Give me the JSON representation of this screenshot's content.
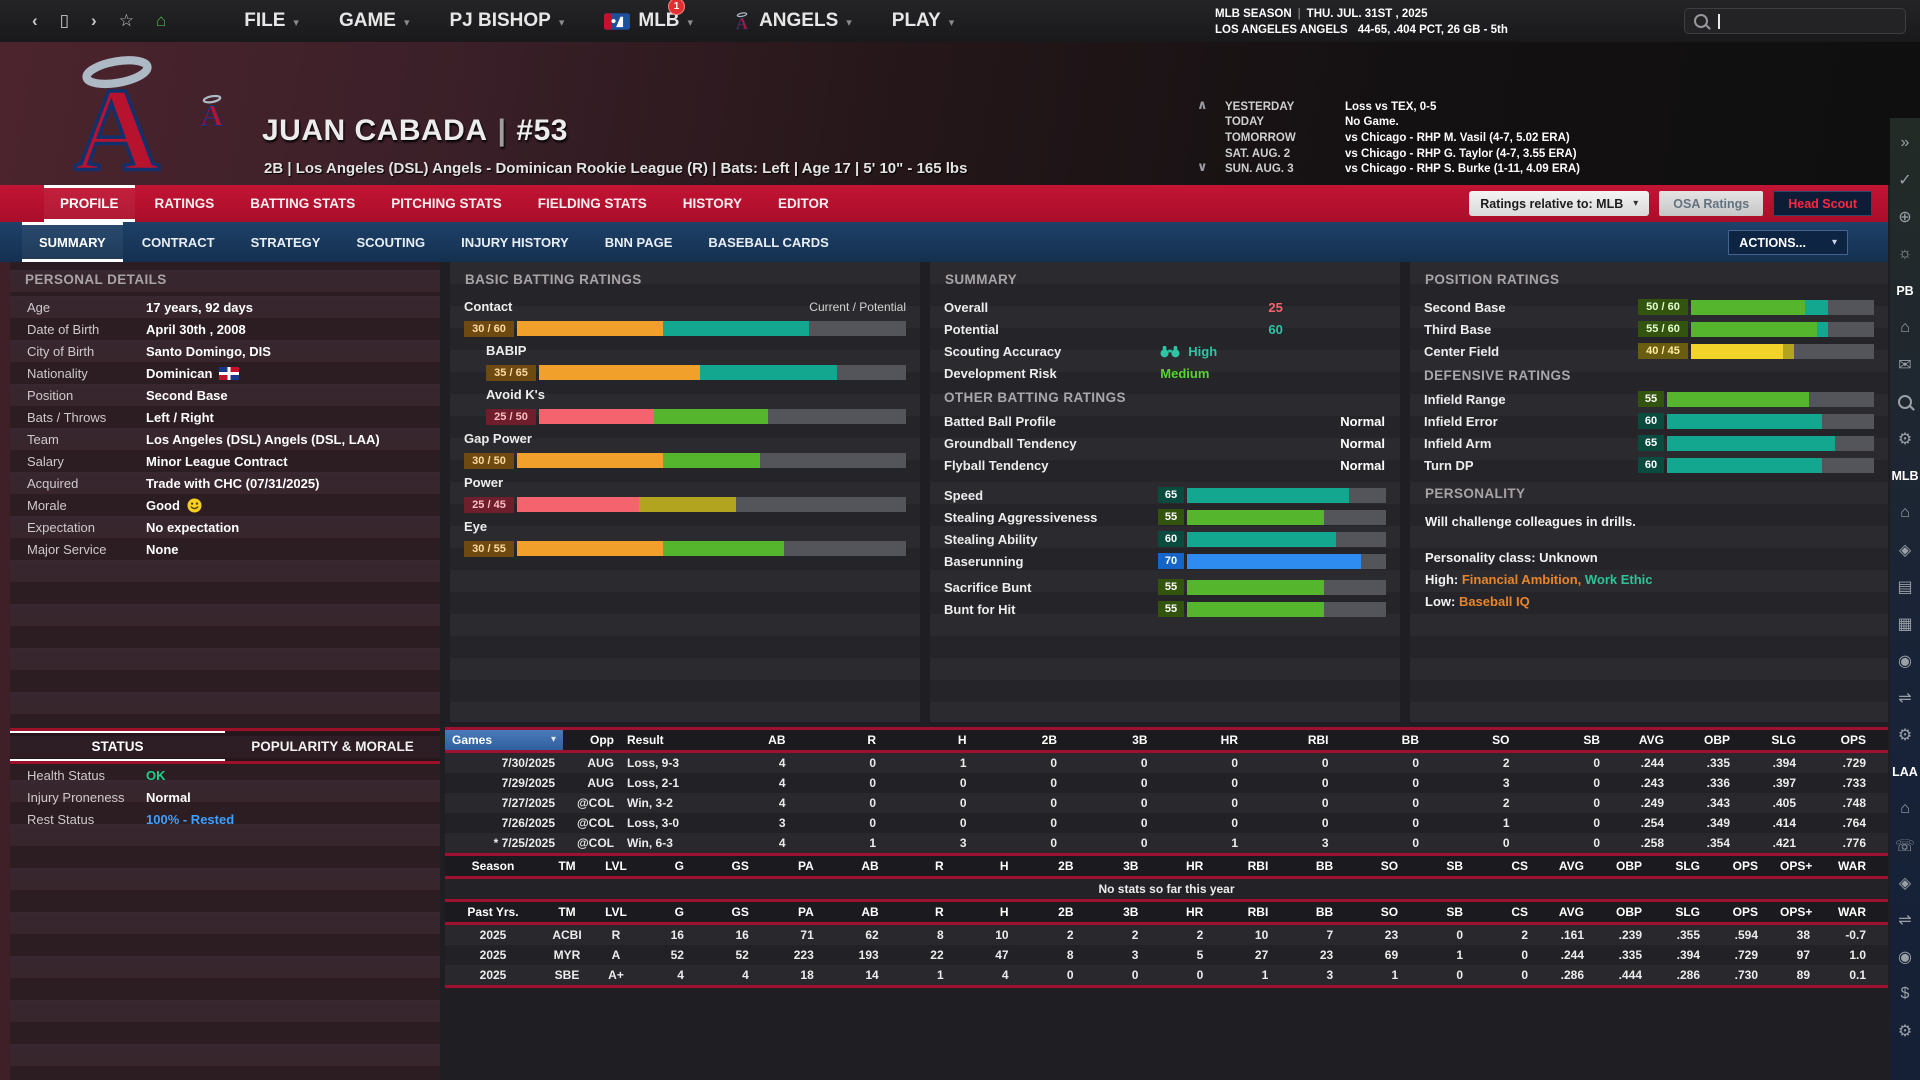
{
  "topbar": {
    "nav": [
      {
        "name": "back-icon",
        "glyph": "‹"
      },
      {
        "name": "window-icon",
        "glyph": "▯"
      },
      {
        "name": "forward-icon",
        "glyph": "›"
      },
      {
        "name": "favorite-icon",
        "glyph": "☆"
      },
      {
        "name": "home-icon",
        "glyph": "⌂"
      }
    ],
    "menus": [
      {
        "label": "FILE"
      },
      {
        "label": "GAME"
      },
      {
        "label": "PJ BISHOP"
      },
      {
        "label": "MLB",
        "logo": "mlb",
        "badge": "1"
      },
      {
        "label": "ANGELS",
        "logo": "angels"
      },
      {
        "label": "PLAY"
      }
    ],
    "season_line1_label": "MLB SEASON",
    "season_sep": "|",
    "season_date": "THU. JUL. 31ST , 2025",
    "team_line_label": "LOS ANGELES ANGELS",
    "team_line_value": "44-65, .404 PCT, 26 GB - 5th",
    "search_placeholder": ""
  },
  "header": {
    "player_name": "JUAN CABADA",
    "pipe": "|",
    "player_number": "#53",
    "subtitle": "2B  |  Los Angeles (DSL) Angels - Dominican Rookie League (R)  |  Bats: Left  |  Age 17  |  5' 10\" - 165 lbs",
    "prev_next_glyphs": "∧ ∨",
    "schedule": [
      {
        "label": "YESTERDAY",
        "value": "Loss vs TEX, 0-5"
      },
      {
        "label": "TODAY",
        "value": "No Game."
      },
      {
        "label": "TOMORROW",
        "value": "vs Chicago - RHP M. Vasil (4-7, 5.02 ERA)"
      },
      {
        "label": "SAT. AUG. 2",
        "value": "vs Chicago - RHP G. Taylor (4-7, 3.55 ERA)"
      },
      {
        "label": "SUN. AUG. 3",
        "value": "vs Chicago - RHP S. Burke (1-11, 4.09 ERA)"
      }
    ]
  },
  "tabs_primary": [
    {
      "label": "PROFILE",
      "active": true
    },
    {
      "label": "RATINGS",
      "active": false
    },
    {
      "label": "BATTING STATS",
      "active": false
    },
    {
      "label": "PITCHING STATS",
      "active": false
    },
    {
      "label": "FIELDING STATS",
      "active": false
    },
    {
      "label": "HISTORY",
      "active": false
    },
    {
      "label": "EDITOR",
      "active": false
    }
  ],
  "rating_controls": {
    "relative_label": "Ratings relative to: MLB",
    "osa_label": "OSA Ratings",
    "scout_label": "Head Scout"
  },
  "tabs_secondary": [
    {
      "label": "SUMMARY",
      "active": true
    },
    {
      "label": "CONTRACT",
      "active": false
    },
    {
      "label": "STRATEGY",
      "active": false
    },
    {
      "label": "SCOUTING",
      "active": false
    },
    {
      "label": "INJURY HISTORY",
      "active": false
    },
    {
      "label": "BNN PAGE",
      "active": false
    },
    {
      "label": "BASEBALL CARDS",
      "active": false
    }
  ],
  "actions_label": "ACTIONS...",
  "personal": {
    "title": "PERSONAL DETAILS",
    "rows": [
      {
        "label": "Age",
        "value": "17 years, 92 days"
      },
      {
        "label": "Date of Birth",
        "value": "April 30th , 2008"
      },
      {
        "label": "City of Birth",
        "value": "Santo Domingo, DIS"
      },
      {
        "label": "Nationality",
        "value": "Dominican",
        "icon": "dr-flag"
      },
      {
        "label": "Position",
        "value": "Second Base"
      },
      {
        "label": "Bats / Throws",
        "value": "Left / Right"
      },
      {
        "label": "Team",
        "value": "Los Angeles (DSL) Angels (DSL, LAA)"
      },
      {
        "label": "Salary",
        "value": "Minor League Contract"
      },
      {
        "label": "Acquired",
        "value": "Trade with CHC (07/31/2025)"
      },
      {
        "label": "Morale",
        "value": "Good",
        "icon": "smiley"
      },
      {
        "label": "Expectation",
        "value": "No expectation"
      },
      {
        "label": "Major Service",
        "value": "None"
      }
    ]
  },
  "status": {
    "tabs": [
      {
        "label": "STATUS",
        "active": true
      },
      {
        "label": "POPULARITY & MORALE",
        "active": false
      }
    ],
    "rows": [
      {
        "label": "Health Status",
        "value": "OK",
        "color": "#1fd08a"
      },
      {
        "label": "Injury Proneness",
        "value": "Normal",
        "color": "#ffffff"
      },
      {
        "label": "Rest Status",
        "value": "100% - Rested",
        "color": "#3f9fff"
      }
    ]
  },
  "batting": {
    "title": "BASIC BATTING RATINGS",
    "axis_label": "Current / Potential",
    "ratings": [
      {
        "label": "Contact",
        "cur": 30,
        "pot": 60,
        "indent": false
      },
      {
        "label": "BABIP",
        "cur": 35,
        "pot": 65,
        "indent": true
      },
      {
        "label": "Avoid K's",
        "cur": 25,
        "pot": 50,
        "indent": true
      },
      {
        "label": "Gap Power",
        "cur": 30,
        "pot": 50,
        "indent": false
      },
      {
        "label": "Power",
        "cur": 25,
        "pot": 45,
        "indent": false
      },
      {
        "label": "Eye",
        "cur": 30,
        "pot": 55,
        "indent": false
      }
    ]
  },
  "summary": {
    "title": "SUMMARY",
    "rows": [
      {
        "label": "Overall",
        "value": "25",
        "color": "#f4636e",
        "pos": 72
      },
      {
        "label": "Potential",
        "value": "60",
        "color": "#2ec4a5",
        "pos": 72
      },
      {
        "label": "Scouting Accuracy",
        "value": "High",
        "color": "#2ec4a5",
        "pos": 49,
        "icon": "binoculars"
      },
      {
        "label": "Development Risk",
        "value": "Medium",
        "color": "#57d52e",
        "pos": 49
      }
    ],
    "other_title": "OTHER BATTING RATINGS",
    "other_rows": [
      {
        "label": "Batted Ball Profile",
        "value": "Normal"
      },
      {
        "label": "Groundball Tendency",
        "value": "Normal"
      },
      {
        "label": "Flyball Tendency",
        "value": "Normal"
      }
    ],
    "bars1": [
      {
        "label": "Speed",
        "value": 65
      },
      {
        "label": "Stealing Aggressiveness",
        "value": 55
      },
      {
        "label": "Stealing Ability",
        "value": 60
      },
      {
        "label": "Baserunning",
        "value": 70
      }
    ],
    "bars2": [
      {
        "label": "Sacrifice Bunt",
        "value": 55
      },
      {
        "label": "Bunt for Hit",
        "value": 55
      }
    ]
  },
  "position": {
    "title": "POSITION RATINGS",
    "pos_ratings": [
      {
        "label": "Second Base",
        "cur": 50,
        "pot": 60
      },
      {
        "label": "Third Base",
        "cur": 55,
        "pot": 60
      },
      {
        "label": "Center Field",
        "cur": 40,
        "pot": 45
      }
    ],
    "def_title": "DEFENSIVE RATINGS",
    "def_ratings": [
      {
        "label": "Infield Range",
        "value": 55
      },
      {
        "label": "Infield Error",
        "value": 60
      },
      {
        "label": "Infield Arm",
        "value": 65
      },
      {
        "label": "Turn DP",
        "value": 60
      }
    ],
    "personality": {
      "title": "PERSONALITY",
      "line1": "Will challenge colleagues in drills.",
      "class_line": "Personality class: Unknown",
      "high_label": "High:",
      "high_items": [
        {
          "text": "Financial Ambition,",
          "color": "orange"
        },
        {
          "text": "Work Ethic",
          "color": "teal"
        }
      ],
      "low_label": "Low:",
      "low_items": [
        {
          "text": "Baseball IQ",
          "color": "orange"
        }
      ]
    }
  },
  "gamelog": {
    "columns": [
      "Games",
      "Opp",
      "Result",
      "AB",
      "R",
      "H",
      "2B",
      "3B",
      "HR",
      "RBI",
      "BB",
      "SO",
      "SB",
      "AVG",
      "OBP",
      "SLG",
      "OPS"
    ],
    "rows": [
      [
        "7/30/2025",
        "AUG",
        "Loss, 9-3",
        "4",
        "0",
        "1",
        "0",
        "0",
        "0",
        "0",
        "0",
        "2",
        "0",
        ".244",
        ".335",
        ".394",
        ".729"
      ],
      [
        "7/29/2025",
        "AUG",
        "Loss, 2-1",
        "4",
        "0",
        "0",
        "0",
        "0",
        "0",
        "0",
        "0",
        "3",
        "0",
        ".243",
        ".336",
        ".397",
        ".733"
      ],
      [
        "7/27/2025",
        "@COL",
        "Win, 3-2",
        "4",
        "0",
        "0",
        "0",
        "0",
        "0",
        "0",
        "0",
        "2",
        "0",
        ".249",
        ".343",
        ".405",
        ".748"
      ],
      [
        "7/26/2025",
        "@COL",
        "Loss, 3-0",
        "3",
        "0",
        "0",
        "0",
        "0",
        "0",
        "0",
        "0",
        "1",
        "0",
        ".254",
        ".349",
        ".414",
        ".764"
      ],
      [
        "* 7/25/2025",
        "@COL",
        "Win, 6-3",
        "4",
        "1",
        "3",
        "0",
        "0",
        "1",
        "3",
        "0",
        "0",
        "0",
        ".258",
        ".354",
        ".421",
        ".776"
      ]
    ]
  },
  "season": {
    "columns": [
      "Season",
      "TM",
      "LVL",
      "G",
      "GS",
      "PA",
      "AB",
      "R",
      "H",
      "2B",
      "3B",
      "HR",
      "RBI",
      "BB",
      "SO",
      "SB",
      "CS",
      "AVG",
      "OBP",
      "SLG",
      "OPS",
      "OPS+",
      "WAR"
    ],
    "notice": "No stats so far this year"
  },
  "past": {
    "columns": [
      "Past Yrs.",
      "TM",
      "LVL",
      "G",
      "GS",
      "PA",
      "AB",
      "R",
      "H",
      "2B",
      "3B",
      "HR",
      "RBI",
      "BB",
      "SO",
      "SB",
      "CS",
      "AVG",
      "OBP",
      "SLG",
      "OPS",
      "OPS+",
      "WAR"
    ],
    "rows": [
      [
        "2025",
        "ACBI",
        "R",
        "16",
        "16",
        "71",
        "62",
        "8",
        "10",
        "2",
        "2",
        "2",
        "10",
        "7",
        "23",
        "0",
        "2",
        ".161",
        ".239",
        ".355",
        ".594",
        "38",
        "-0.7"
      ],
      [
        "2025",
        "MYR",
        "A",
        "52",
        "52",
        "223",
        "193",
        "22",
        "47",
        "8",
        "3",
        "5",
        "27",
        "23",
        "69",
        "1",
        "0",
        ".244",
        ".335",
        ".394",
        ".729",
        "97",
        "1.0"
      ],
      [
        "2025",
        "SBE",
        "A+",
        "4",
        "4",
        "18",
        "14",
        "1",
        "4",
        "0",
        "0",
        "0",
        "1",
        "3",
        "1",
        "0",
        "0",
        ".286",
        ".444",
        ".286",
        ".730",
        "89",
        "0.1"
      ]
    ]
  },
  "sidebar": {
    "items": [
      {
        "name": "expand-sidebar-icon",
        "glyph": "»"
      },
      {
        "name": "check-icon",
        "glyph": "✓"
      },
      {
        "name": "globe-icon",
        "glyph": "⊕"
      },
      {
        "name": "idea-icon",
        "glyph": "☼"
      },
      {
        "name": "label-pb",
        "text": "PB"
      },
      {
        "name": "home-icon",
        "glyph": "⌂"
      },
      {
        "name": "mail-icon",
        "glyph": "✉"
      },
      {
        "name": "search-icon",
        "glyph": ""
      },
      {
        "name": "settings-icon",
        "glyph": "⚙"
      },
      {
        "name": "label-mlb",
        "text": "MLB"
      },
      {
        "name": "home-icon",
        "glyph": "⌂"
      },
      {
        "name": "location-icon",
        "glyph": "◈"
      },
      {
        "name": "id-card-icon",
        "glyph": "▤"
      },
      {
        "name": "stats-icon",
        "glyph": "▦"
      },
      {
        "name": "baseball-icon",
        "glyph": "◉"
      },
      {
        "name": "trade-icon",
        "glyph": "⇌"
      },
      {
        "name": "settings-icon",
        "glyph": "⚙"
      },
      {
        "name": "label-laa",
        "text": "LAA"
      },
      {
        "name": "home-icon",
        "glyph": "⌂"
      },
      {
        "name": "phone-icon",
        "glyph": "☏"
      },
      {
        "name": "location-icon",
        "glyph": "◈"
      },
      {
        "name": "trade-icon",
        "glyph": "⇌"
      },
      {
        "name": "baseball-icon",
        "glyph": "◉"
      },
      {
        "name": "finance-icon",
        "glyph": "$"
      },
      {
        "name": "settings-icon",
        "glyph": "⚙"
      }
    ]
  },
  "colors": {
    "accent_red": "#bb1233",
    "navy_bar": "#16365f",
    "rating_scale": {
      "pink": {
        "bar": "#f4636e",
        "badge_bg": "#6e1f2b",
        "badge_text": "#ffbcc3"
      },
      "orange": {
        "bar": "#f2a02c",
        "badge_bg": "#6e4a10",
        "badge_text": "#ffd9a0"
      },
      "yellow": {
        "bar": "#f2d32a",
        "badge_bg": "#6a5c10",
        "badge_text": "#ffeea0"
      },
      "olive": {
        "bar": "#b2a41e",
        "badge_bg": "#56500f",
        "badge_text": "#e8e3a0"
      },
      "green": {
        "bar": "#55b52c",
        "badge_bg": "#33540f",
        "badge_text": "#e2ffcf"
      },
      "teal": {
        "bar": "#12a78e",
        "badge_bg": "#0b4a3f",
        "badge_text": "#d2fff4"
      },
      "blue": {
        "bar": "#2e8cf0",
        "badge_bg": "#1565c8",
        "badge_text": "#ffffff"
      }
    },
    "personality_orange": "#e8852c",
    "personality_teal": "#2ec49a"
  }
}
